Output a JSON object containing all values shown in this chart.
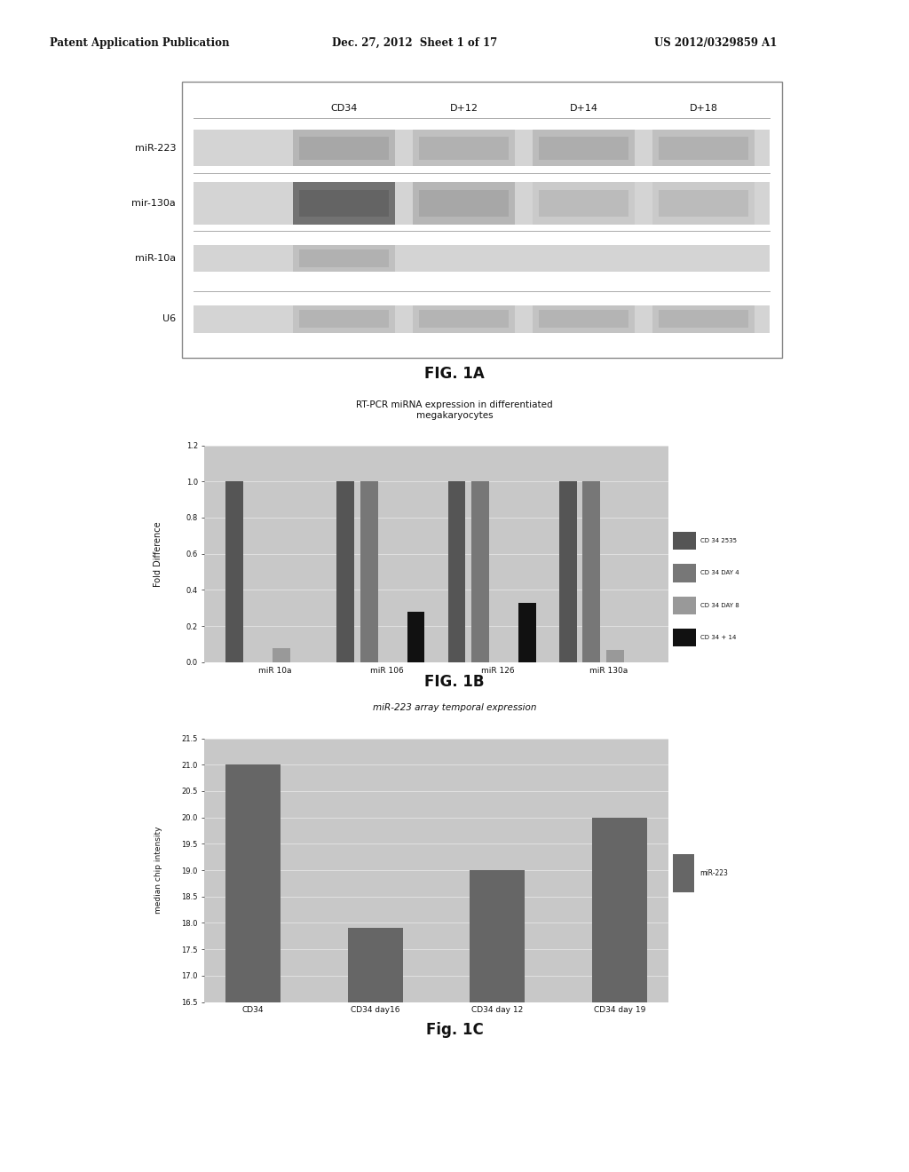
{
  "header_left": "Patent Application Publication",
  "header_mid": "Dec. 27, 2012  Sheet 1 of 17",
  "header_right": "US 2012/0329859 A1",
  "fig1a_label": "FIG. 1A",
  "fig1a_col_labels": [
    "CD34",
    "D+12",
    "D+14",
    "D+18"
  ],
  "fig1a_row_labels": [
    "miR-223",
    "mir-130a",
    "miR-10a",
    "U6"
  ],
  "fig1b_label": "FIG. 1B",
  "fig1b_title": "RT-PCR miRNA expression in differentiated\nmegakaryocytes",
  "fig1b_ylabel": "Fold Difference",
  "fig1b_categories": [
    "miR 10a",
    "miR 106",
    "miR 126",
    "miR 130a"
  ],
  "fig1b_series_labels": [
    "CD 34 2535",
    "CD 34 DAY 4",
    "CD 34 DAY 8",
    "CD 34 + 14"
  ],
  "fig1b_ylim": [
    0,
    1.2
  ],
  "fig1b_yticks": [
    0,
    0.2,
    0.4,
    0.6,
    0.8,
    1.0,
    1.2
  ],
  "fig1b_data": {
    "CD 34 2535": [
      1.0,
      1.0,
      1.0,
      1.0
    ],
    "CD 34 DAY 4": [
      0.0,
      1.0,
      1.0,
      1.0
    ],
    "CD 34 DAY 8": [
      0.08,
      0.0,
      0.0,
      0.07
    ],
    "CD 34 + 14": [
      0.0,
      0.28,
      0.33,
      0.0
    ]
  },
  "fig1b_colors": [
    "#555555",
    "#777777",
    "#999999",
    "#111111"
  ],
  "fig1c_label": "Fig. 1C",
  "fig1c_title": "miR-223 array temporal expression",
  "fig1c_ylabel": "median chip intensity",
  "fig1c_categories": [
    "CD34",
    "CD34 day16",
    "CD34 day 12",
    "CD34 day 19"
  ],
  "fig1c_ylim": [
    16.5,
    21.5
  ],
  "fig1c_yticks": [
    16.5,
    17.0,
    17.5,
    18.0,
    18.5,
    19.0,
    19.5,
    20.0,
    20.5,
    21.0,
    21.5
  ],
  "fig1c_data": [
    21.0,
    17.9,
    19.0,
    20.0
  ],
  "fig1c_color": "#666666",
  "fig1c_series_label": "miR-223",
  "bg_color": "#ffffff",
  "plot_bg_color": "#c8c8c8",
  "blot_bg_color": "#c0c0c0"
}
